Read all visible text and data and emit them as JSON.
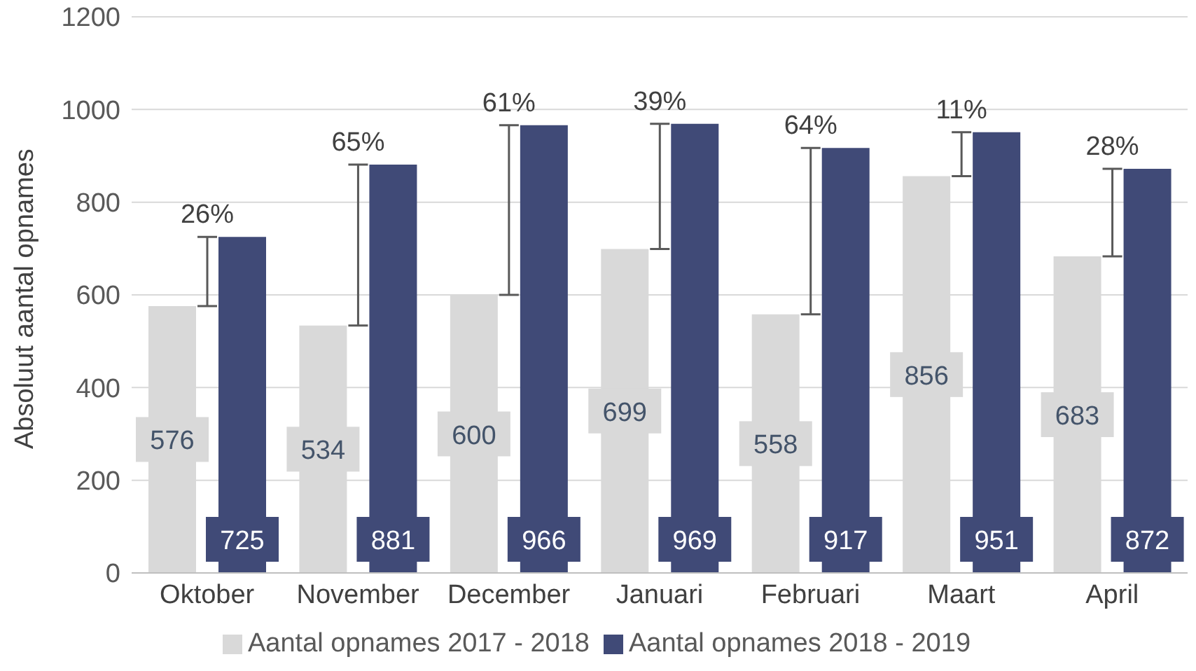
{
  "chart_data": {
    "type": "bar",
    "ylabel": "Absoluut aantal opnames",
    "categories": [
      "Oktober",
      "November",
      "December",
      "Januari",
      "Februari",
      "Maart",
      "April"
    ],
    "series": [
      {
        "name": "Aantal opnames 2017 - 2018",
        "color": "#d9d9d9",
        "values": [
          576,
          534,
          600,
          699,
          558,
          856,
          683
        ]
      },
      {
        "name": "Aantal opnames 2018 - 2019",
        "color": "#404a77",
        "values": [
          725,
          881,
          966,
          969,
          917,
          951,
          872
        ]
      }
    ],
    "ylim": [
      0,
      1200
    ],
    "yticks": [
      0,
      200,
      400,
      600,
      800,
      1000,
      1200
    ],
    "grid": "y",
    "legend": "bottom",
    "data_labels": true,
    "annotations": [
      "26%",
      "65%",
      "61%",
      "39%",
      "64%",
      "11%",
      "28%"
    ]
  }
}
